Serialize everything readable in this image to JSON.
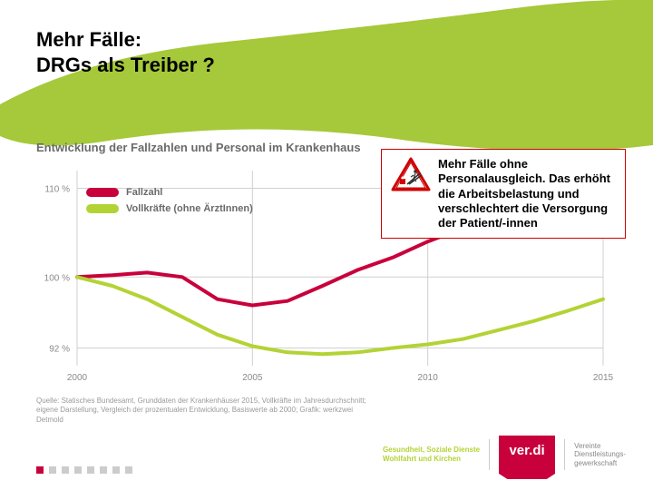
{
  "title": {
    "line1": "Mehr Fälle:",
    "line2": "DRGs als Treiber ?"
  },
  "swoosh_color": "#a5c93a",
  "chart": {
    "type": "line",
    "title": "Entwicklung der Fallzahlen und Personal im Krankenhaus",
    "title_color": "#6a6a6a",
    "title_fontsize": 13,
    "background_color": "#ffffff",
    "grid_color": "#d0d0d0",
    "axis_label_color": "#8a8a8a",
    "xlim": [
      2000,
      2015
    ],
    "ylim": [
      90,
      112
    ],
    "yticks": [
      {
        "value": 92,
        "label": "92 %"
      },
      {
        "value": 100,
        "label": "100 %"
      },
      {
        "value": 110,
        "label": "110 %"
      }
    ],
    "xticks": [
      {
        "value": 2000,
        "label": "2000"
      },
      {
        "value": 2005,
        "label": "2005"
      },
      {
        "value": 2010,
        "label": "2010"
      },
      {
        "value": 2015,
        "label": "2015"
      }
    ],
    "line_width": 4,
    "series": [
      {
        "name": "Fallzahl",
        "color": "#c8003c",
        "points": [
          [
            2000,
            100
          ],
          [
            2001,
            100.2
          ],
          [
            2002,
            100.5
          ],
          [
            2003,
            100
          ],
          [
            2004,
            97.5
          ],
          [
            2005,
            96.8
          ],
          [
            2006,
            97.3
          ],
          [
            2007,
            99
          ],
          [
            2008,
            100.8
          ],
          [
            2009,
            102.2
          ],
          [
            2010,
            104
          ],
          [
            2011,
            105.5
          ],
          [
            2012,
            107
          ],
          [
            2013,
            108.2
          ],
          [
            2014,
            109.5
          ],
          [
            2015,
            110.5
          ]
        ]
      },
      {
        "name": "Vollkräfte (ohne ÄrztInnen)",
        "color": "#b3d335",
        "points": [
          [
            2000,
            100
          ],
          [
            2001,
            99
          ],
          [
            2002,
            97.5
          ],
          [
            2003,
            95.5
          ],
          [
            2004,
            93.5
          ],
          [
            2005,
            92.2
          ],
          [
            2006,
            91.5
          ],
          [
            2007,
            91.3
          ],
          [
            2008,
            91.5
          ],
          [
            2009,
            92
          ],
          [
            2010,
            92.4
          ],
          [
            2011,
            93
          ],
          [
            2012,
            94
          ],
          [
            2013,
            95
          ],
          [
            2014,
            96.2
          ],
          [
            2015,
            97.5
          ]
        ]
      }
    ]
  },
  "legend": {
    "items": [
      {
        "label": "Fallzahl",
        "color": "#c8003c"
      },
      {
        "label": "Vollkräfte (ohne ÄrztInnen)",
        "color": "#b3d335"
      }
    ]
  },
  "callout": {
    "border_color": "#d00000",
    "text": "Mehr Fälle ohne Personalausgleich. Das erhöht die Arbeitsbelastung und verschlechtert die Versorgung der Patient/-innen"
  },
  "source": {
    "text": "Quelle: Statisches Bundesamt, Grunddaten der Krankenhäuser 2015, Vollkräfte im Jahresdurchschnitt; eigene Darstellung, Vergleich der prozentualen Entwicklung, Basiswerte ab 2000; Grafik: werkzwei Detmold"
  },
  "footer": {
    "dot_count": 8,
    "active_dot_index": 0,
    "dot_color": "#cccccc",
    "active_dot_color": "#c8003c",
    "logo_text": "ver.di",
    "logo_bg": "#c8003c",
    "org_left_line1": "Gesundheit, Soziale Dienste",
    "org_left_line2": "Wohlfahrt und Kirchen",
    "org_right_line1": "Vereinte",
    "org_right_line2": "Dienstleistungs-",
    "org_right_line3": "gewerkschaft"
  }
}
